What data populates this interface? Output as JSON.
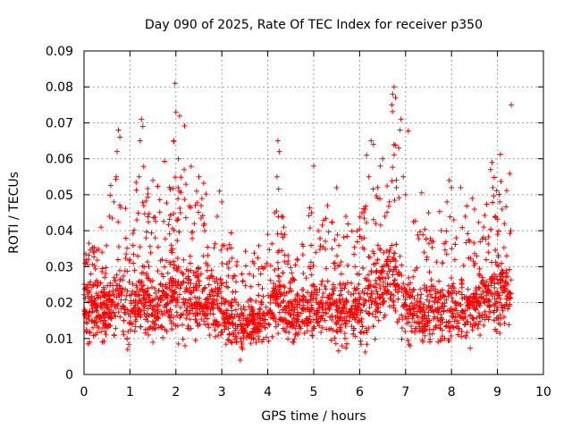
{
  "chart_data": {
    "type": "scatter",
    "title": "Day 090 of 2025, Rate Of TEC Index for receiver p350",
    "xlabel": "GPS time / hours",
    "ylabel": "ROTI / TECUs",
    "xlim": [
      0,
      10
    ],
    "ylim": [
      0,
      0.09
    ],
    "grid": true,
    "marker": "+",
    "color": "#ff0000",
    "x_ticks": [
      "0",
      "1",
      "2",
      "3",
      "4",
      "5",
      "6",
      "7",
      "8",
      "9",
      "10"
    ],
    "y_ticks": [
      "0",
      "0.01",
      "0.02",
      "0.03",
      "0.04",
      "0.05",
      "0.06",
      "0.07",
      "0.08",
      "0.09"
    ],
    "series": [
      {
        "name": "ROTI",
        "profile_note": "dense scatter; envelope listed as [hour, typical_low, typical_high, peak]",
        "envelope": [
          [
            0.0,
            0.008,
            0.03,
            0.036
          ],
          [
            0.5,
            0.006,
            0.028,
            0.045
          ],
          [
            0.75,
            0.008,
            0.035,
            0.068
          ],
          [
            1.0,
            0.005,
            0.025,
            0.04
          ],
          [
            1.25,
            0.008,
            0.035,
            0.072
          ],
          [
            1.5,
            0.006,
            0.03,
            0.055
          ],
          [
            2.0,
            0.005,
            0.04,
            0.081
          ],
          [
            2.5,
            0.006,
            0.035,
            0.055
          ],
          [
            3.0,
            0.005,
            0.03,
            0.052
          ],
          [
            3.4,
            0.003,
            0.022,
            0.035
          ],
          [
            4.0,
            0.007,
            0.028,
            0.04
          ],
          [
            4.25,
            0.008,
            0.035,
            0.065
          ],
          [
            4.5,
            0.005,
            0.025,
            0.03
          ],
          [
            5.0,
            0.006,
            0.03,
            0.058
          ],
          [
            5.5,
            0.006,
            0.028,
            0.052
          ],
          [
            6.0,
            0.005,
            0.03,
            0.05
          ],
          [
            6.25,
            0.006,
            0.04,
            0.065
          ],
          [
            6.5,
            0.006,
            0.04,
            0.06
          ],
          [
            6.75,
            0.008,
            0.045,
            0.08
          ],
          [
            7.0,
            0.006,
            0.03,
            0.071
          ],
          [
            7.5,
            0.005,
            0.028,
            0.045
          ],
          [
            8.0,
            0.006,
            0.03,
            0.054
          ],
          [
            8.5,
            0.006,
            0.03,
            0.048
          ],
          [
            9.0,
            0.007,
            0.04,
            0.06
          ],
          [
            9.3,
            0.007,
            0.035,
            0.075
          ]
        ],
        "values": [
          [
            0.02,
            0.018
          ],
          [
            0.05,
            0.012
          ],
          [
            0.08,
            0.025
          ],
          [
            0.1,
            0.032
          ],
          [
            0.12,
            0.009
          ],
          [
            0.15,
            0.028
          ],
          [
            0.18,
            0.015
          ],
          [
            0.22,
            0.034
          ],
          [
            0.25,
            0.011
          ],
          [
            0.3,
            0.022
          ],
          [
            0.35,
            0.016
          ],
          [
            0.4,
            0.009
          ],
          [
            0.45,
            0.027
          ],
          [
            0.5,
            0.013
          ],
          [
            0.55,
            0.044
          ],
          [
            0.6,
            0.019
          ],
          [
            0.65,
            0.048
          ],
          [
            0.7,
            0.055
          ],
          [
            0.72,
            0.062
          ],
          [
            0.75,
            0.068
          ],
          [
            0.78,
            0.066
          ],
          [
            0.8,
            0.024
          ],
          [
            0.85,
            0.012
          ],
          [
            0.9,
            0.018
          ],
          [
            0.95,
            0.007
          ],
          [
            1.0,
            0.022
          ],
          [
            1.05,
            0.014
          ],
          [
            1.1,
            0.029
          ],
          [
            1.15,
            0.043
          ],
          [
            1.2,
            0.055
          ],
          [
            1.22,
            0.065
          ],
          [
            1.25,
            0.071
          ],
          [
            1.28,
            0.069
          ],
          [
            1.3,
            0.047
          ],
          [
            1.35,
            0.02
          ],
          [
            1.4,
            0.011
          ],
          [
            1.45,
            0.026
          ],
          [
            1.5,
            0.054
          ],
          [
            1.55,
            0.038
          ],
          [
            1.6,
            0.016
          ],
          [
            1.7,
            0.022
          ],
          [
            1.8,
            0.012
          ],
          [
            1.9,
            0.036
          ],
          [
            1.95,
            0.065
          ],
          [
            1.98,
            0.081
          ],
          [
            2.0,
            0.073
          ],
          [
            2.05,
            0.052
          ],
          [
            2.1,
            0.045
          ],
          [
            2.15,
            0.028
          ],
          [
            2.2,
            0.008
          ],
          [
            2.3,
            0.019
          ],
          [
            2.4,
            0.042
          ],
          [
            2.45,
            0.051
          ],
          [
            2.5,
            0.055
          ],
          [
            2.55,
            0.047
          ],
          [
            2.6,
            0.033
          ],
          [
            2.7,
            0.014
          ],
          [
            2.8,
            0.021
          ],
          [
            2.9,
            0.044
          ],
          [
            2.95,
            0.051
          ],
          [
            3.0,
            0.048
          ],
          [
            3.05,
            0.036
          ],
          [
            3.1,
            0.017
          ],
          [
            3.2,
            0.009
          ],
          [
            3.3,
            0.023
          ],
          [
            3.4,
            0.004
          ],
          [
            3.5,
            0.018
          ],
          [
            3.6,
            0.028
          ],
          [
            3.7,
            0.012
          ],
          [
            3.8,
            0.025
          ],
          [
            3.9,
            0.015
          ],
          [
            4.0,
            0.039
          ],
          [
            4.1,
            0.022
          ],
          [
            4.15,
            0.045
          ],
          [
            4.2,
            0.055
          ],
          [
            4.22,
            0.065
          ],
          [
            4.25,
            0.062
          ],
          [
            4.3,
            0.044
          ],
          [
            4.35,
            0.041
          ],
          [
            4.4,
            0.019
          ],
          [
            4.5,
            0.026
          ],
          [
            4.6,
            0.011
          ],
          [
            4.7,
            0.021
          ],
          [
            4.8,
            0.014
          ],
          [
            4.9,
            0.03
          ],
          [
            4.95,
            0.045
          ],
          [
            5.0,
            0.058
          ],
          [
            5.05,
            0.034
          ],
          [
            5.1,
            0.04
          ],
          [
            5.2,
            0.018
          ],
          [
            5.3,
            0.047
          ],
          [
            5.4,
            0.035
          ],
          [
            5.5,
            0.052
          ],
          [
            5.6,
            0.028
          ],
          [
            5.7,
            0.044
          ],
          [
            5.8,
            0.016
          ],
          [
            5.9,
            0.03
          ],
          [
            6.0,
            0.021
          ],
          [
            6.05,
            0.045
          ],
          [
            6.1,
            0.038
          ],
          [
            6.15,
            0.061
          ],
          [
            6.2,
            0.055
          ],
          [
            6.25,
            0.065
          ],
          [
            6.3,
            0.064
          ],
          [
            6.35,
            0.042
          ],
          [
            6.4,
            0.036
          ],
          [
            6.45,
            0.058
          ],
          [
            6.5,
            0.06
          ],
          [
            6.55,
            0.044
          ],
          [
            6.6,
            0.032
          ],
          [
            6.65,
            0.048
          ],
          [
            6.7,
            0.075
          ],
          [
            6.72,
            0.078
          ],
          [
            6.75,
            0.08
          ],
          [
            6.78,
            0.077
          ],
          [
            6.8,
            0.052
          ],
          [
            6.85,
            0.063
          ],
          [
            6.88,
            0.068
          ],
          [
            6.9,
            0.071
          ],
          [
            6.95,
            0.055
          ],
          [
            7.0,
            0.05
          ],
          [
            7.05,
            0.025
          ],
          [
            7.1,
            0.018
          ],
          [
            7.2,
            0.029
          ],
          [
            7.3,
            0.012
          ],
          [
            7.4,
            0.034
          ],
          [
            7.5,
            0.045
          ],
          [
            7.6,
            0.037
          ],
          [
            7.7,
            0.02
          ],
          [
            7.8,
            0.031
          ],
          [
            7.9,
            0.048
          ],
          [
            7.95,
            0.054
          ],
          [
            8.0,
            0.052
          ],
          [
            8.05,
            0.043
          ],
          [
            8.1,
            0.038
          ],
          [
            8.2,
            0.052
          ],
          [
            8.3,
            0.044
          ],
          [
            8.4,
            0.037
          ],
          [
            8.45,
            0.049
          ],
          [
            8.5,
            0.046
          ],
          [
            8.6,
            0.028
          ],
          [
            8.7,
            0.041
          ],
          [
            8.8,
            0.034
          ],
          [
            8.85,
            0.057
          ],
          [
            8.88,
            0.059
          ],
          [
            8.9,
            0.052
          ],
          [
            8.95,
            0.044
          ],
          [
            9.0,
            0.039
          ],
          [
            9.05,
            0.048
          ],
          [
            9.1,
            0.046
          ],
          [
            9.15,
            0.042
          ],
          [
            9.2,
            0.033
          ],
          [
            9.25,
            0.021
          ],
          [
            9.3,
            0.075
          ]
        ]
      }
    ]
  }
}
